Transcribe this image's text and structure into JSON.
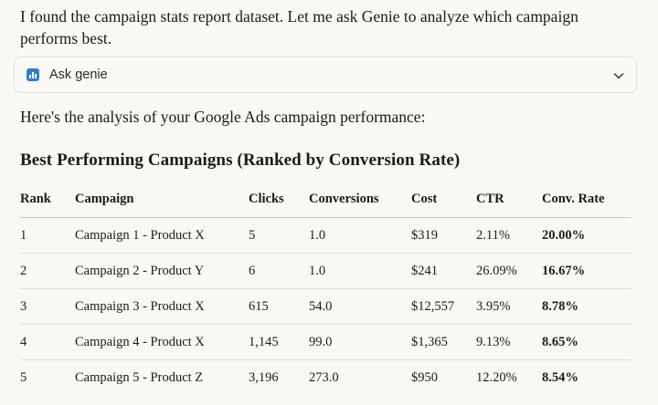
{
  "message": {
    "intro": "I found the campaign stats report dataset. Let me ask Genie to analyze which campaign performs best.",
    "tool": {
      "label": "Ask genie",
      "icon": "bar-chart-icon",
      "expand_icon": "chevron-down-icon"
    },
    "analysis_intro": "Here's the analysis of your Google Ads campaign performance:",
    "section_title": "Best Performing Campaigns (Ranked by Conversion Rate)"
  },
  "table": {
    "headers": [
      "Rank",
      "Campaign",
      "Clicks",
      "Conversions",
      "Cost",
      "CTR",
      "Conv. Rate"
    ],
    "rows": [
      [
        "1",
        "Campaign 1 - Product X",
        "5",
        "1.0",
        "$319",
        "2.11%",
        "20.00%"
      ],
      [
        "2",
        "Campaign 2 - Product Y",
        "6",
        "1.0",
        "$241",
        "26.09%",
        "16.67%"
      ],
      [
        "3",
        "Campaign 3 - Product X",
        "615",
        "54.0",
        "$12,557",
        "3.95%",
        "8.78%"
      ],
      [
        "4",
        "Campaign 4 - Product X",
        "1,145",
        "99.0",
        "$1,365",
        "9.13%",
        "8.65%"
      ],
      [
        "5",
        "Campaign 5 - Product Z",
        "3,196",
        "273.0",
        "$950",
        "12.20%",
        "8.54%"
      ]
    ]
  },
  "colors": {
    "background": "#f9f8f4",
    "text": "#1c1b18",
    "accent": "#2e7fc4"
  }
}
